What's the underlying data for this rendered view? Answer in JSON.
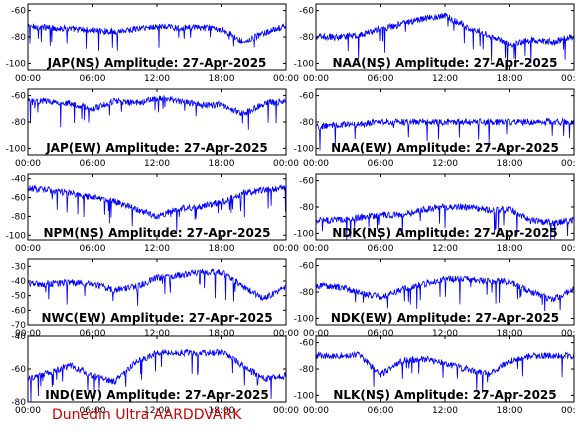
{
  "footer": {
    "credit": "Dunedin Ultra AARDDVARK"
  },
  "chart_data": [
    {
      "type": "line",
      "title": "JAP(NS) Amplitude: 27-Apr-2025",
      "xlabel": "",
      "ylabel": "",
      "x_ticks": [
        "00:00",
        "06:00",
        "12:00",
        "18:00",
        "00:00"
      ],
      "ylim": [
        -105,
        -55
      ],
      "yticks": [
        -100,
        -80,
        -60
      ],
      "color": "#0000ff",
      "series": [
        {
          "x": [
            0,
            2,
            4,
            6,
            8,
            10,
            12,
            14,
            16,
            18,
            20,
            22,
            24
          ],
          "values": [
            -72,
            -73,
            -74,
            -75,
            -76,
            -74,
            -72,
            -73,
            -73,
            -74,
            -84,
            -77,
            -72
          ]
        }
      ]
    },
    {
      "type": "line",
      "title": "NAA(NS) Amplitude: 27-Apr-2025",
      "xlabel": "",
      "ylabel": "",
      "x_ticks": [
        "00:00",
        "06:00",
        "12:00",
        "18:00",
        "00:00"
      ],
      "ylim": [
        -105,
        -55
      ],
      "yticks": [
        -100,
        -80,
        -60
      ],
      "color": "#0000ff",
      "series": [
        {
          "x": [
            0,
            2,
            4,
            6,
            8,
            10,
            12,
            14,
            16,
            18,
            20,
            22,
            24
          ],
          "values": [
            -80,
            -80,
            -79,
            -74,
            -70,
            -66,
            -64,
            -72,
            -78,
            -86,
            -82,
            -84,
            -80
          ]
        }
      ]
    },
    {
      "type": "line",
      "title": "JAP(EW) Amplitude: 27-Apr-2025",
      "xlabel": "",
      "ylabel": "",
      "x_ticks": [
        "00:00",
        "06:00",
        "12:00",
        "18:00",
        "00:00"
      ],
      "ylim": [
        -105,
        -55
      ],
      "yticks": [
        -100,
        -80,
        -60
      ],
      "color": "#0000ff",
      "series": [
        {
          "x": [
            0,
            2,
            4,
            6,
            8,
            10,
            12,
            14,
            16,
            18,
            20,
            22,
            24
          ],
          "values": [
            -64,
            -64,
            -66,
            -70,
            -64,
            -66,
            -62,
            -64,
            -67,
            -67,
            -74,
            -66,
            -64
          ]
        }
      ]
    },
    {
      "type": "line",
      "title": "NAA(EW) Amplitude: 27-Apr-2025",
      "xlabel": "",
      "ylabel": "",
      "x_ticks": [
        "00:00",
        "06:00",
        "12:00",
        "18:00",
        "00:00"
      ],
      "ylim": [
        -105,
        -55
      ],
      "yticks": [
        -100,
        -80,
        -60
      ],
      "color": "#0000ff",
      "series": [
        {
          "x": [
            0,
            2,
            4,
            6,
            8,
            10,
            12,
            14,
            16,
            18,
            20,
            22,
            24
          ],
          "values": [
            -84,
            -82,
            -82,
            -80,
            -80,
            -80,
            -80,
            -80,
            -80,
            -80,
            -80,
            -80,
            -80
          ]
        }
      ]
    },
    {
      "type": "line",
      "title": "NPM(NS) Amplitude: 27-Apr-2025",
      "xlabel": "",
      "ylabel": "",
      "x_ticks": [
        "00:00",
        "06:00",
        "12:00",
        "18:00",
        "00:00"
      ],
      "ylim": [
        -105,
        -35
      ],
      "yticks": [
        -100,
        -80,
        -60,
        -40
      ],
      "color": "#0000ff",
      "series": [
        {
          "x": [
            0,
            2,
            4,
            6,
            8,
            10,
            12,
            14,
            16,
            18,
            20,
            22,
            24
          ],
          "values": [
            -50,
            -52,
            -55,
            -60,
            -64,
            -72,
            -80,
            -72,
            -70,
            -65,
            -55,
            -52,
            -50
          ]
        }
      ]
    },
    {
      "type": "line",
      "title": "NDK(NS) Amplitude: 27-Apr-2025",
      "xlabel": "",
      "ylabel": "",
      "x_ticks": [
        "00:00",
        "06:00",
        "12:00",
        "18:00",
        "00:00"
      ],
      "ylim": [
        -105,
        -55
      ],
      "yticks": [
        -100,
        -80,
        -60
      ],
      "color": "#0000ff",
      "series": [
        {
          "x": [
            0,
            2,
            4,
            6,
            8,
            10,
            12,
            14,
            16,
            18,
            20,
            22,
            24
          ],
          "values": [
            -90,
            -90,
            -88,
            -86,
            -86,
            -82,
            -80,
            -80,
            -82,
            -82,
            -90,
            -92,
            -90
          ]
        }
      ]
    },
    {
      "type": "line",
      "title": "NWC(EW) Amplitude: 27-Apr-2025",
      "xlabel": "",
      "ylabel": "",
      "x_ticks": [
        "00:00",
        "06:00",
        "12:00",
        "18:00",
        "00:00"
      ],
      "ylim": [
        -70,
        -25
      ],
      "yticks": [
        -70,
        -60,
        -50,
        -40,
        -30
      ],
      "color": "#0000ff",
      "series": [
        {
          "x": [
            0,
            2,
            4,
            6,
            8,
            10,
            12,
            14,
            16,
            18,
            20,
            22,
            24
          ],
          "values": [
            -42,
            -42,
            -41,
            -42,
            -46,
            -44,
            -38,
            -36,
            -34,
            -34,
            -44,
            -52,
            -44
          ]
        }
      ]
    },
    {
      "type": "line",
      "title": "NDK(EW) Amplitude: 27-Apr-2025",
      "xlabel": "",
      "ylabel": "",
      "x_ticks": [
        "00:00",
        "06:00",
        "12:00",
        "18:00",
        "00:00"
      ],
      "ylim": [
        -105,
        -55
      ],
      "yticks": [
        -100,
        -80,
        -60
      ],
      "color": "#0000ff",
      "series": [
        {
          "x": [
            0,
            2,
            4,
            6,
            8,
            10,
            12,
            14,
            16,
            18,
            20,
            22,
            24
          ],
          "values": [
            -75,
            -76,
            -80,
            -84,
            -78,
            -74,
            -70,
            -70,
            -72,
            -72,
            -80,
            -86,
            -78
          ]
        }
      ]
    },
    {
      "type": "line",
      "title": "IND(EW) Amplitude: 27-Apr-2025",
      "xlabel": "",
      "ylabel": "",
      "x_ticks": [
        "00:00",
        "06:00",
        "12:00",
        "18:00",
        "00:00"
      ],
      "ylim": [
        -80,
        -40
      ],
      "yticks": [
        -80,
        -60,
        -40
      ],
      "color": "#0000ff",
      "series": [
        {
          "x": [
            0,
            2,
            4,
            6,
            8,
            10,
            12,
            14,
            16,
            18,
            20,
            22,
            24
          ],
          "values": [
            -66,
            -62,
            -58,
            -64,
            -68,
            -56,
            -50,
            -50,
            -50,
            -50,
            -58,
            -66,
            -64
          ]
        }
      ]
    },
    {
      "type": "line",
      "title": "NLK(NS) Amplitude: 27-Apr-2025",
      "xlabel": "",
      "ylabel": "",
      "x_ticks": [
        "00:00",
        "06:00",
        "12:00",
        "18:00",
        "00:00"
      ],
      "ylim": [
        -105,
        -55
      ],
      "yticks": [
        -100,
        -80,
        -60
      ],
      "color": "#0000ff",
      "series": [
        {
          "x": [
            0,
            2,
            4,
            6,
            8,
            10,
            12,
            14,
            16,
            18,
            20,
            22,
            24
          ],
          "values": [
            -70,
            -70,
            -69,
            -84,
            -74,
            -72,
            -76,
            -80,
            -84,
            -74,
            -70,
            -70,
            -70
          ]
        }
      ]
    }
  ]
}
